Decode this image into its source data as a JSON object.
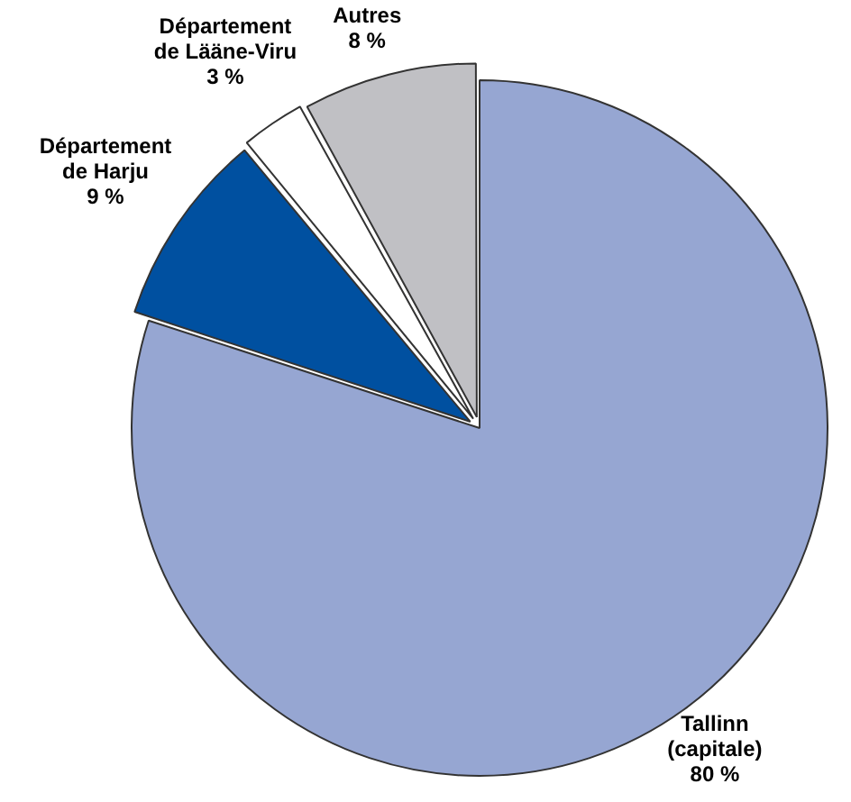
{
  "chart_data": {
    "type": "pie",
    "categories": [
      "Tallinn (capitale)",
      "Département de Harju",
      "Département de Lääne-Viru",
      "Autres"
    ],
    "values": [
      80,
      9,
      3,
      8
    ],
    "value_labels": [
      "80 %",
      "9 %",
      "3 %",
      "8 %"
    ],
    "colors": [
      "#96a6d2",
      "#0050a0",
      "#ffffff",
      "#c0c0c4"
    ],
    "legend": false
  }
}
